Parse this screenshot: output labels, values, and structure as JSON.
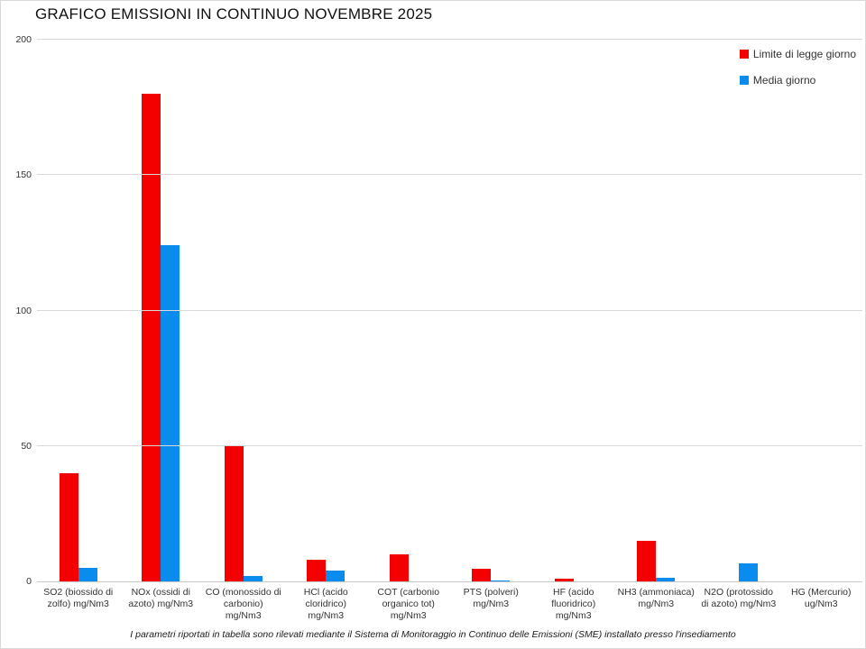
{
  "title": "GRAFICO EMISSIONI IN CONTINUO NOVEMBRE 2025",
  "footer": "I parametri riportati in tabella sono rilevati mediante il Sistema di Monitoraggio in Continuo delle Emissioni (SME) installato presso l'insediamento",
  "legend": [
    {
      "label": "Limite di legge giorno",
      "color": "#f40000"
    },
    {
      "label": "Media giorno",
      "color": "#0a8cee"
    }
  ],
  "chart_data": {
    "type": "bar",
    "title": "GRAFICO EMISSIONI IN CONTINUO NOVEMBRE 2025",
    "categories": [
      "SO2 (biossido di zolfo) mg/Nm3",
      "NOx (ossidi di azoto) mg/Nm3",
      "CO (monossido di carbonio) mg/Nm3",
      "HCl (acido cloridrico) mg/Nm3",
      "COT (carbonio organico tot) mg/Nm3",
      "PTS (polveri) mg/Nm3",
      "HF (acido fluoridrico) mg/Nm3",
      "NH3 (ammoniaca) mg/Nm3",
      "N2O (protossido di azoto) mg/Nm3",
      "HG (Mercurio) ug/Nm3"
    ],
    "series": [
      {
        "name": "Limite di legge giorno",
        "color": "#f40000",
        "values": [
          40,
          180,
          50,
          8,
          10,
          4.5,
          1,
          15,
          0,
          0
        ]
      },
      {
        "name": "Media giorno",
        "color": "#0a8cee",
        "values": [
          5,
          124,
          2,
          4,
          0,
          0.5,
          0,
          1.5,
          6.5,
          0
        ]
      }
    ],
    "xlabel": "",
    "ylabel": "",
    "ylim": [
      0,
      200
    ],
    "yticks": [
      0,
      50,
      100,
      150,
      200
    ],
    "grid": true,
    "legend_position": "top-right"
  }
}
